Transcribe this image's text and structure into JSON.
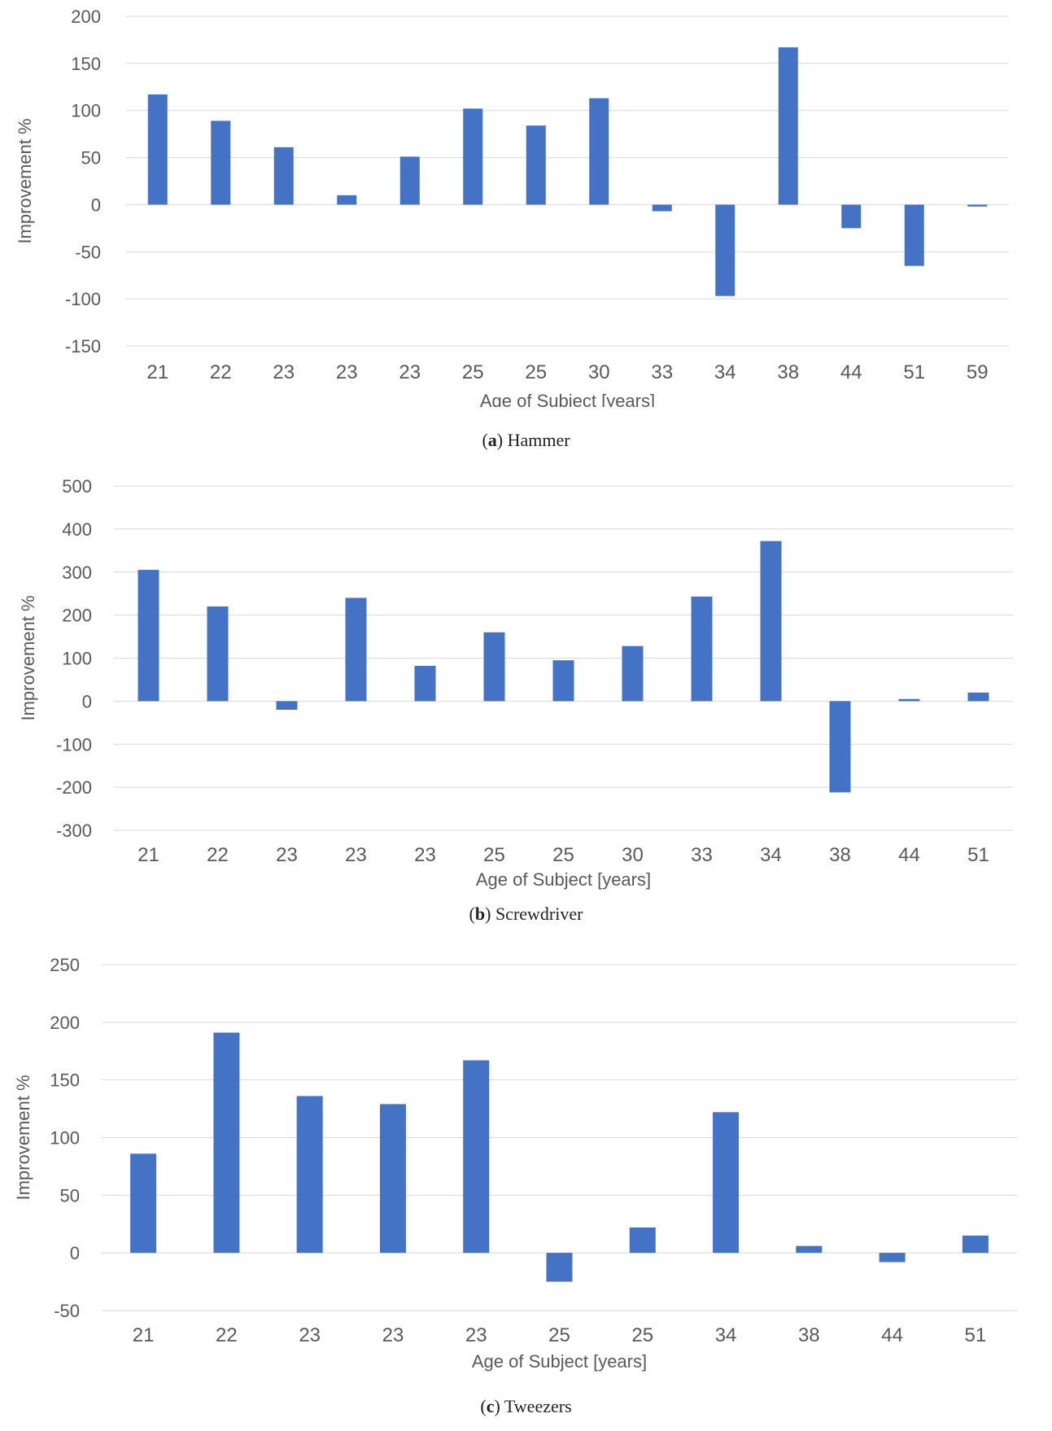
{
  "chart_data": [
    {
      "type": "bar",
      "title": "",
      "caption_letter": "a",
      "caption_text": "Hammer",
      "xlabel": "Age of Subject [years]",
      "ylabel": "Improvement %",
      "ylim": [
        -150,
        200
      ],
      "ystep": 50,
      "color": "#4472c4",
      "categories": [
        "21",
        "22",
        "23",
        "23",
        "23",
        "25",
        "25",
        "30",
        "33",
        "34",
        "38",
        "44",
        "51",
        "59"
      ],
      "values": [
        117,
        89,
        61,
        10,
        51,
        102,
        84,
        113,
        -7,
        -97,
        167,
        -25,
        -65,
        -2
      ]
    },
    {
      "type": "bar",
      "title": "",
      "caption_letter": "b",
      "caption_text": "Screwdriver",
      "xlabel": "Age of Subject [years]",
      "ylabel": "Improvement %",
      "ylim": [
        -300,
        500
      ],
      "ystep": 100,
      "color": "#4472c4",
      "categories": [
        "21",
        "22",
        "23",
        "23",
        "23",
        "25",
        "25",
        "30",
        "33",
        "34",
        "38",
        "44",
        "51"
      ],
      "values": [
        305,
        220,
        -20,
        240,
        82,
        160,
        95,
        128,
        243,
        372,
        -212,
        5,
        20
      ]
    },
    {
      "type": "bar",
      "title": "",
      "caption_letter": "c",
      "caption_text": "Tweezers",
      "xlabel": "Age of Subject [years]",
      "ylabel": "Improvement %",
      "ylim": [
        -50,
        250
      ],
      "ystep": 50,
      "color": "#4472c4",
      "categories": [
        "21",
        "22",
        "23",
        "23",
        "23",
        "25",
        "25",
        "34",
        "38",
        "44",
        "51"
      ],
      "values": [
        86,
        191,
        136,
        129,
        167,
        -25,
        22,
        122,
        6,
        -8,
        15
      ]
    }
  ]
}
